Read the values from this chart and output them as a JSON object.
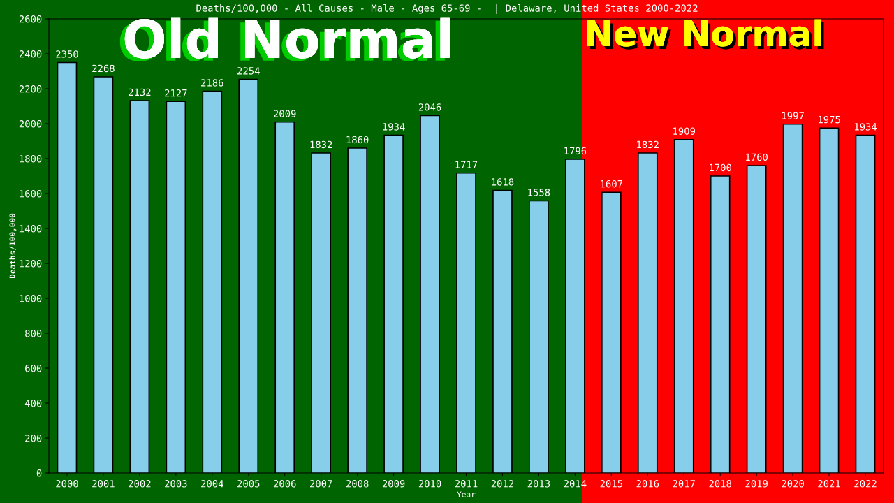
{
  "chart_data": {
    "type": "bar",
    "title": "Deaths/100,000 - All Causes - Male - Ages 65-69 -  | Delaware, United States 2000-2022",
    "xlabel": "Year",
    "ylabel": "Deaths/100,000",
    "categories": [
      "2000",
      "2001",
      "2002",
      "2003",
      "2004",
      "2005",
      "2006",
      "2007",
      "2008",
      "2009",
      "2010",
      "2011",
      "2012",
      "2013",
      "2014",
      "2015",
      "2016",
      "2017",
      "2018",
      "2019",
      "2020",
      "2021",
      "2022"
    ],
    "values": [
      2350,
      2268,
      2132,
      2127,
      2186,
      2254,
      2009,
      1832,
      1860,
      1934,
      2046,
      1717,
      1618,
      1558,
      1796,
      1607,
      1832,
      1909,
      1700,
      1760,
      1997,
      1975,
      1934
    ],
    "color": "#87ceeb",
    "data_labels": true,
    "ylim": [
      0,
      2600
    ],
    "yticks": [
      0,
      200,
      400,
      600,
      800,
      1000,
      1200,
      1400,
      1600,
      1800,
      2000,
      2200,
      2400,
      2600
    ],
    "grid": false,
    "legend": false,
    "bands": [
      {
        "axis": "x",
        "from": "2000",
        "to": "2014",
        "label": "Old Normal",
        "color": "#006400"
      },
      {
        "axis": "x",
        "from": "2014",
        "to": "2022",
        "label": "New Normal",
        "color": "#ff0000"
      }
    ]
  }
}
